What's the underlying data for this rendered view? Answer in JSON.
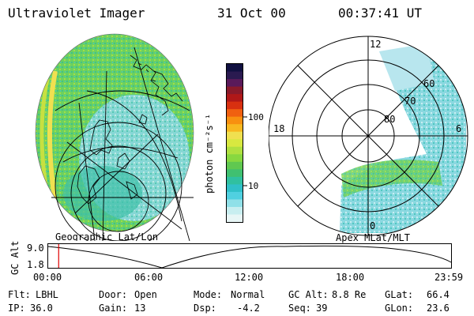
{
  "header": {
    "instrument": "Ultraviolet Imager",
    "date": "31 Oct 00",
    "time": "00:37:41 UT"
  },
  "left_panel": {
    "caption": "Geographic Lat/Lon"
  },
  "right_panel": {
    "caption": "Apex MLat/MLT",
    "mlt_labels": [
      "12",
      "18",
      "6",
      "0"
    ],
    "mlat_labels": [
      "60",
      "70",
      "80"
    ]
  },
  "colorbar": {
    "unit_label": "photon cm⁻²s⁻¹",
    "ticks": [
      "100",
      "10"
    ],
    "colors": [
      "#101040",
      "#2a1a50",
      "#5a1a5a",
      "#8a1a2a",
      "#b01818",
      "#d83010",
      "#f06010",
      "#f89010",
      "#f8b820",
      "#f0e050",
      "#d8e840",
      "#b0e040",
      "#88d840",
      "#60c850",
      "#40c070",
      "#30c0a0",
      "#30c0c8",
      "#50d0e0",
      "#90e0e8",
      "#c8eef0",
      "#e8f6f6"
    ]
  },
  "timeline": {
    "ylabel": "GC Alt",
    "yticks": [
      "9.0",
      "1.8"
    ],
    "xticks": [
      "00:00",
      "06:00",
      "12:00",
      "18:00",
      "23:59"
    ],
    "current_time_fraction": 0.026
  },
  "footer": {
    "row1": [
      {
        "key": "Flt:",
        "value": "LBHL"
      },
      {
        "key": "Door:",
        "value": "Open"
      },
      {
        "key": "Mode:",
        "value": "Normal"
      },
      {
        "key": "GC Alt:",
        "value": "8.8 Re"
      },
      {
        "key": "GLat:",
        "value": "66.4"
      }
    ],
    "row2": [
      {
        "key": "IP:",
        "value": "36.0"
      },
      {
        "key": "Gain:",
        "value": "13"
      },
      {
        "key": "Dsp:",
        "value": "-4.2"
      },
      {
        "key": "Seq:",
        "value": "39"
      },
      {
        "key": "GLon:",
        "value": "23.6"
      }
    ]
  }
}
